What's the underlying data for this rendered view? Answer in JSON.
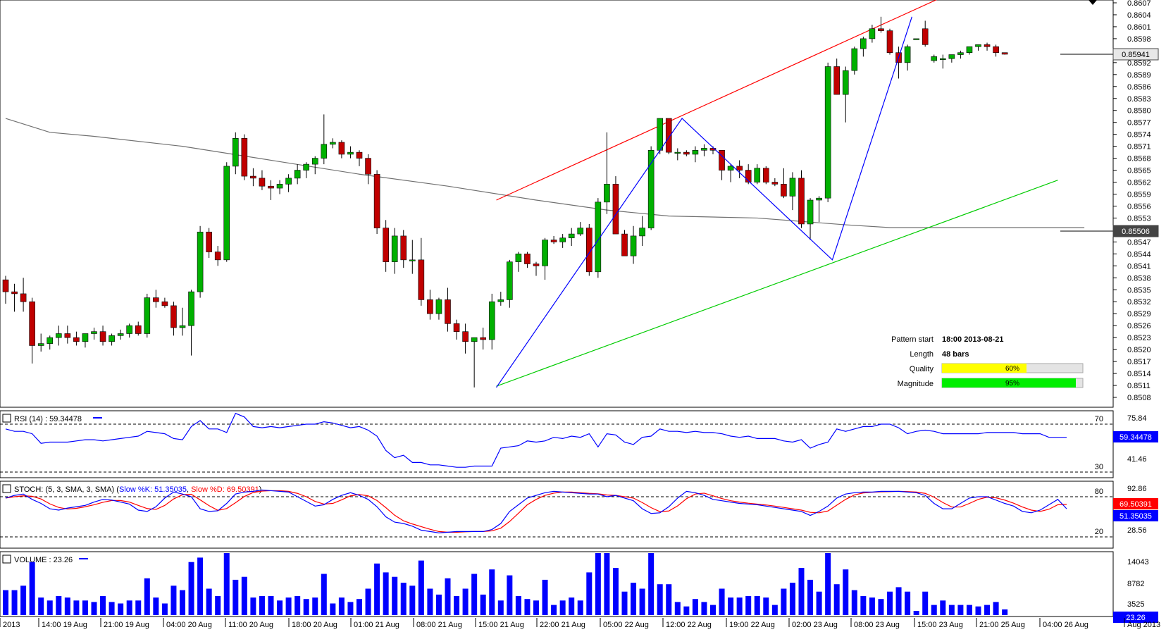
{
  "colors": {
    "bull": "#00b000",
    "bear": "#c00000",
    "wick": "#000000",
    "ma": "#707070",
    "resistance": "#ff0000",
    "support": "#00cc00",
    "zigzag": "#0000ff",
    "rsi": "#0000ff",
    "stoch_k": "#0000ff",
    "stoch_d": "#ff0000",
    "volume": "#0000ff",
    "quality_bar": "#ffff00",
    "magnitude_bar": "#00ee00"
  },
  "price_panel": {
    "y_ticks": [
      "0.8607",
      "0.8604",
      "0.8601",
      "0.8598",
      "0.8595",
      "0.8592",
      "0.8589",
      "0.8586",
      "0.8583",
      "0.8580",
      "0.8577",
      "0.8574",
      "0.8571",
      "0.8568",
      "0.8565",
      "0.8562",
      "0.8559",
      "0.8556",
      "0.8553",
      "0.8550",
      "0.8547",
      "0.8544",
      "0.8541",
      "0.8538",
      "0.8535",
      "0.8532",
      "0.8529",
      "0.8526",
      "0.8523",
      "0.8520",
      "0.8517",
      "0.8514",
      "0.8511",
      "0.8508"
    ],
    "current_price": "0.85941",
    "ma_value": "0.85506"
  },
  "pattern_info": {
    "start_label": "Pattern start",
    "start_value": "18:00 2013-08-21",
    "length_label": "Length",
    "length_value": "48 bars",
    "quality_label": "Quality",
    "quality_value": "60%",
    "quality_pct": 60,
    "magnitude_label": "Magnitude",
    "magnitude_value": "95%",
    "magnitude_pct": 95
  },
  "rsi_panel": {
    "label": "RSI (14) : 59.34478",
    "current": "59.34478",
    "ticks": [
      "75.84",
      "41.46"
    ],
    "levels": [
      "70",
      "30"
    ]
  },
  "stoch_panel": {
    "label_main": "STOCH: (5, 3, SMA, 3, SMA)",
    "label_k": "Slow %K: 51.35035",
    "label_d": "Slow %D: 69.50391",
    "k_current": "51.35035",
    "d_current": "69.50391",
    "ticks": [
      "92.86",
      "28.56"
    ],
    "levels": [
      "80",
      "20"
    ]
  },
  "volume_panel": {
    "label": "VOLUME : 23.26",
    "current": "23.26",
    "ticks": [
      "14043",
      "8782",
      "3525"
    ]
  },
  "x_axis": {
    "labels": [
      "2013",
      "14:00 19 Aug",
      "21:00 19 Aug",
      "04:00 20 Aug",
      "11:00 20 Aug",
      "18:00 20 Aug",
      "01:00 21 Aug",
      "08:00 21 Aug",
      "15:00 21 Aug",
      "22:00 21 Aug",
      "05:00 22 Aug",
      "12:00 22 Aug",
      "19:00 22 Aug",
      "02:00 23 Aug",
      "08:00 23 Aug",
      "15:00 23 Aug",
      "21:00 25 Aug",
      "04:00 26 Aug",
      "Aug 2013"
    ]
  },
  "chart_data": {
    "type": "candlestick",
    "ohlc": [
      [
        0.85375,
        0.85385,
        0.85315,
        0.85345
      ],
      [
        0.85345,
        0.85365,
        0.85295,
        0.8534
      ],
      [
        0.8534,
        0.8538,
        0.85295,
        0.8532
      ],
      [
        0.8532,
        0.8533,
        0.85165,
        0.8521
      ],
      [
        0.8521,
        0.8524,
        0.85195,
        0.85215
      ],
      [
        0.85215,
        0.85235,
        0.852,
        0.8523
      ],
      [
        0.8523,
        0.8526,
        0.8521,
        0.8524
      ],
      [
        0.8524,
        0.8526,
        0.85215,
        0.8523
      ],
      [
        0.8523,
        0.85245,
        0.8521,
        0.8522
      ],
      [
        0.8522,
        0.8524,
        0.85205,
        0.8524
      ],
      [
        0.8524,
        0.85255,
        0.85225,
        0.85245
      ],
      [
        0.85245,
        0.8526,
        0.8521,
        0.8522
      ],
      [
        0.8522,
        0.8524,
        0.8521,
        0.85235
      ],
      [
        0.85235,
        0.8525,
        0.85225,
        0.8524
      ],
      [
        0.8524,
        0.85265,
        0.8523,
        0.8526
      ],
      [
        0.8526,
        0.8527,
        0.85235,
        0.8524
      ],
      [
        0.8524,
        0.8534,
        0.8523,
        0.8533
      ],
      [
        0.8533,
        0.8535,
        0.85305,
        0.8532
      ],
      [
        0.8532,
        0.8533,
        0.85305,
        0.8531
      ],
      [
        0.8531,
        0.8532,
        0.85235,
        0.85255
      ],
      [
        0.85255,
        0.85305,
        0.85235,
        0.8526
      ],
      [
        0.8526,
        0.8535,
        0.85185,
        0.85345
      ],
      [
        0.85345,
        0.8551,
        0.8533,
        0.85495
      ],
      [
        0.85495,
        0.85505,
        0.8543,
        0.85445
      ],
      [
        0.85445,
        0.8546,
        0.8541,
        0.85425
      ],
      [
        0.85425,
        0.8567,
        0.8542,
        0.8566
      ],
      [
        0.8566,
        0.85745,
        0.8564,
        0.8573
      ],
      [
        0.8573,
        0.8574,
        0.85625,
        0.85635
      ],
      [
        0.85635,
        0.85655,
        0.8561,
        0.8563
      ],
      [
        0.8563,
        0.8565,
        0.856,
        0.8561
      ],
      [
        0.8561,
        0.85625,
        0.85575,
        0.85605
      ],
      [
        0.85605,
        0.85625,
        0.8559,
        0.85615
      ],
      [
        0.85615,
        0.8564,
        0.85595,
        0.8563
      ],
      [
        0.8563,
        0.85665,
        0.85615,
        0.8565
      ],
      [
        0.8565,
        0.8567,
        0.8563,
        0.85665
      ],
      [
        0.85665,
        0.85685,
        0.8564,
        0.8568
      ],
      [
        0.8568,
        0.8579,
        0.85665,
        0.85715
      ],
      [
        0.85715,
        0.8573,
        0.85705,
        0.8572
      ],
      [
        0.8572,
        0.85725,
        0.8568,
        0.8569
      ],
      [
        0.8569,
        0.8571,
        0.8568,
        0.85695
      ],
      [
        0.85695,
        0.857,
        0.8566,
        0.8568
      ],
      [
        0.8568,
        0.8569,
        0.85615,
        0.8564
      ],
      [
        0.8564,
        0.8565,
        0.8549,
        0.85505
      ],
      [
        0.85505,
        0.85525,
        0.85395,
        0.8542
      ],
      [
        0.8542,
        0.85505,
        0.8539,
        0.85485
      ],
      [
        0.85485,
        0.855,
        0.85405,
        0.85425
      ],
      [
        0.85425,
        0.85475,
        0.8539,
        0.85425
      ],
      [
        0.85425,
        0.8548,
        0.8531,
        0.85325
      ],
      [
        0.85325,
        0.8535,
        0.85275,
        0.8529
      ],
      [
        0.8529,
        0.8533,
        0.85275,
        0.85325
      ],
      [
        0.85325,
        0.85355,
        0.85245,
        0.85265
      ],
      [
        0.85265,
        0.85275,
        0.85225,
        0.85245
      ],
      [
        0.85245,
        0.85265,
        0.8519,
        0.8522
      ],
      [
        0.8522,
        0.8523,
        0.85105,
        0.8523
      ],
      [
        0.8523,
        0.85255,
        0.852,
        0.85225
      ],
      [
        0.85225,
        0.8534,
        0.852,
        0.8532
      ],
      [
        0.8532,
        0.85345,
        0.8531,
        0.85325
      ],
      [
        0.85325,
        0.85425,
        0.85305,
        0.8542
      ],
      [
        0.8542,
        0.85445,
        0.85395,
        0.8544
      ],
      [
        0.8544,
        0.85445,
        0.85405,
        0.85415
      ],
      [
        0.85415,
        0.8542,
        0.85385,
        0.8541
      ],
      [
        0.8541,
        0.8548,
        0.85375,
        0.85475
      ],
      [
        0.85475,
        0.85485,
        0.85465,
        0.8547
      ],
      [
        0.8547,
        0.8549,
        0.85455,
        0.8548
      ],
      [
        0.8548,
        0.85505,
        0.8546,
        0.8549
      ],
      [
        0.8549,
        0.8552,
        0.85485,
        0.85505
      ],
      [
        0.85505,
        0.85515,
        0.85385,
        0.85395
      ],
      [
        0.85395,
        0.8558,
        0.8538,
        0.8557
      ],
      [
        0.8557,
        0.85745,
        0.8554,
        0.85615
      ],
      [
        0.85615,
        0.85635,
        0.8549,
        0.8549
      ],
      [
        0.8549,
        0.855,
        0.85435,
        0.85435
      ],
      [
        0.85435,
        0.8551,
        0.85415,
        0.85485
      ],
      [
        0.85485,
        0.85535,
        0.8546,
        0.85505
      ],
      [
        0.85505,
        0.8571,
        0.855,
        0.857
      ],
      [
        0.857,
        0.8578,
        0.8569,
        0.8578
      ],
      [
        0.8578,
        0.8578,
        0.8569,
        0.85695
      ],
      [
        0.85695,
        0.85705,
        0.85675,
        0.85695
      ],
      [
        0.85695,
        0.857,
        0.85685,
        0.8569
      ],
      [
        0.8569,
        0.8571,
        0.8567,
        0.857
      ],
      [
        0.857,
        0.85715,
        0.85685,
        0.85705
      ],
      [
        0.85705,
        0.8571,
        0.8569,
        0.857
      ],
      [
        0.857,
        0.857,
        0.85625,
        0.8565
      ],
      [
        0.8565,
        0.85665,
        0.8562,
        0.8566
      ],
      [
        0.8566,
        0.85675,
        0.8563,
        0.8565
      ],
      [
        0.8565,
        0.85665,
        0.85615,
        0.8562
      ],
      [
        0.8562,
        0.85665,
        0.85615,
        0.85655
      ],
      [
        0.85655,
        0.8566,
        0.85615,
        0.8562
      ],
      [
        0.8562,
        0.8563,
        0.8561,
        0.85615
      ],
      [
        0.85615,
        0.85655,
        0.8558,
        0.85585
      ],
      [
        0.85585,
        0.85645,
        0.8555,
        0.8563
      ],
      [
        0.8563,
        0.8565,
        0.85505,
        0.85515
      ],
      [
        0.85515,
        0.8558,
        0.85475,
        0.85575
      ],
      [
        0.85575,
        0.85585,
        0.8552,
        0.8558
      ],
      [
        0.8558,
        0.8592,
        0.8557,
        0.8591
      ],
      [
        0.8591,
        0.8593,
        0.8584,
        0.8584
      ],
      [
        0.8584,
        0.8591,
        0.8577,
        0.859
      ],
      [
        0.859,
        0.8596,
        0.8589,
        0.85955
      ],
      [
        0.85955,
        0.85985,
        0.85935,
        0.8598
      ],
      [
        0.8598,
        0.86015,
        0.8597,
        0.86005
      ],
      [
        0.86005,
        0.86035,
        0.85995,
        0.86
      ],
      [
        0.86,
        0.86005,
        0.8594,
        0.85945
      ],
      [
        0.85945,
        0.8596,
        0.8588,
        0.8592
      ],
      [
        0.8592,
        0.85965,
        0.859,
        0.8596
      ],
      [
        0.8598,
        0.8598,
        0.8598,
        0.8598
      ],
      [
        0.86005,
        0.86025,
        0.8596,
        0.85965
      ],
      [
        0.85925,
        0.8594,
        0.8592,
        0.85935
      ],
      [
        0.8593,
        0.8594,
        0.85905,
        0.8593
      ],
      [
        0.8593,
        0.8594,
        0.8592,
        0.8594
      ],
      [
        0.8594,
        0.8595,
        0.8593,
        0.85945
      ],
      [
        0.85945,
        0.8596,
        0.8594,
        0.8596
      ],
      [
        0.8596,
        0.85965,
        0.8595,
        0.85965
      ],
      [
        0.85965,
        0.8597,
        0.8595,
        0.8596
      ],
      [
        0.8596,
        0.85965,
        0.85935,
        0.85945
      ],
      [
        0.85945,
        0.85945,
        0.8594,
        0.85941
      ]
    ],
    "moving_average": [
      [
        0,
        0.8578
      ],
      [
        5,
        0.85745
      ],
      [
        10,
        0.85735
      ],
      [
        20,
        0.8571
      ],
      [
        30,
        0.85675
      ],
      [
        40,
        0.8564
      ],
      [
        50,
        0.8561
      ],
      [
        60,
        0.85575
      ],
      [
        68,
        0.8555
      ],
      [
        75,
        0.85535
      ],
      [
        85,
        0.8553
      ],
      [
        95,
        0.85513
      ],
      [
        100,
        0.85506
      ],
      [
        122,
        0.85506
      ]
    ],
    "resistance_line": [
      [
        55.5,
        0.85575
      ],
      [
        106,
        0.86085
      ]
    ],
    "support_line": [
      [
        55.5,
        0.85108
      ],
      [
        119,
        0.85625
      ]
    ],
    "zigzag": [
      [
        55.5,
        0.85105
      ],
      [
        76.5,
        0.8578
      ],
      [
        93.5,
        0.85425
      ],
      [
        102.5,
        0.86035
      ]
    ],
    "rsi": [
      66,
      64,
      64,
      62,
      54,
      55,
      55,
      55,
      56,
      57,
      57,
      56,
      57,
      58,
      59,
      60,
      64,
      63,
      62,
      58,
      57,
      68,
      73,
      66,
      66,
      63,
      79,
      76,
      68,
      67,
      68,
      67,
      68,
      69,
      70,
      70,
      72,
      71,
      69,
      67,
      68,
      65,
      60,
      48,
      42,
      44,
      38,
      38,
      36,
      36,
      35,
      34,
      34,
      35,
      35,
      35,
      50,
      51,
      52,
      56,
      55,
      56,
      59,
      58,
      60,
      59,
      62,
      51,
      62,
      61,
      55,
      53,
      59,
      60,
      66,
      64,
      64,
      63,
      64,
      63,
      63,
      62,
      60,
      59,
      60,
      58,
      58,
      58,
      56,
      55,
      57,
      50,
      53,
      55,
      66,
      64,
      66,
      68,
      68,
      70,
      70,
      67,
      62,
      64,
      65,
      64,
      62,
      62,
      62,
      62,
      62,
      63,
      63,
      63,
      63,
      62,
      62,
      62,
      59,
      59,
      59
    ],
    "stoch_k": [
      78,
      82,
      84,
      76,
      70,
      62,
      60,
      63,
      65,
      67,
      72,
      76,
      75,
      72,
      69,
      60,
      58,
      65,
      78,
      87,
      84,
      80,
      62,
      58,
      59,
      70,
      84,
      87,
      88,
      90,
      89,
      88,
      87,
      80,
      73,
      66,
      68,
      76,
      82,
      86,
      82,
      76,
      65,
      50,
      42,
      40,
      36,
      30,
      28,
      26,
      27,
      28,
      28,
      28,
      28,
      31,
      40,
      58,
      68,
      78,
      82,
      86,
      88,
      87,
      86,
      85,
      84,
      84,
      80,
      82,
      78,
      74,
      62,
      55,
      56,
      65,
      78,
      88,
      86,
      82,
      76,
      74,
      72,
      70,
      69,
      68,
      66,
      64,
      62,
      60,
      58,
      52,
      58,
      66,
      78,
      84,
      86,
      87,
      87,
      88,
      88,
      88,
      87,
      86,
      82,
      70,
      62,
      62,
      70,
      78,
      80,
      80,
      75,
      70,
      66,
      58,
      56,
      60,
      68,
      76,
      62
    ]
  }
}
